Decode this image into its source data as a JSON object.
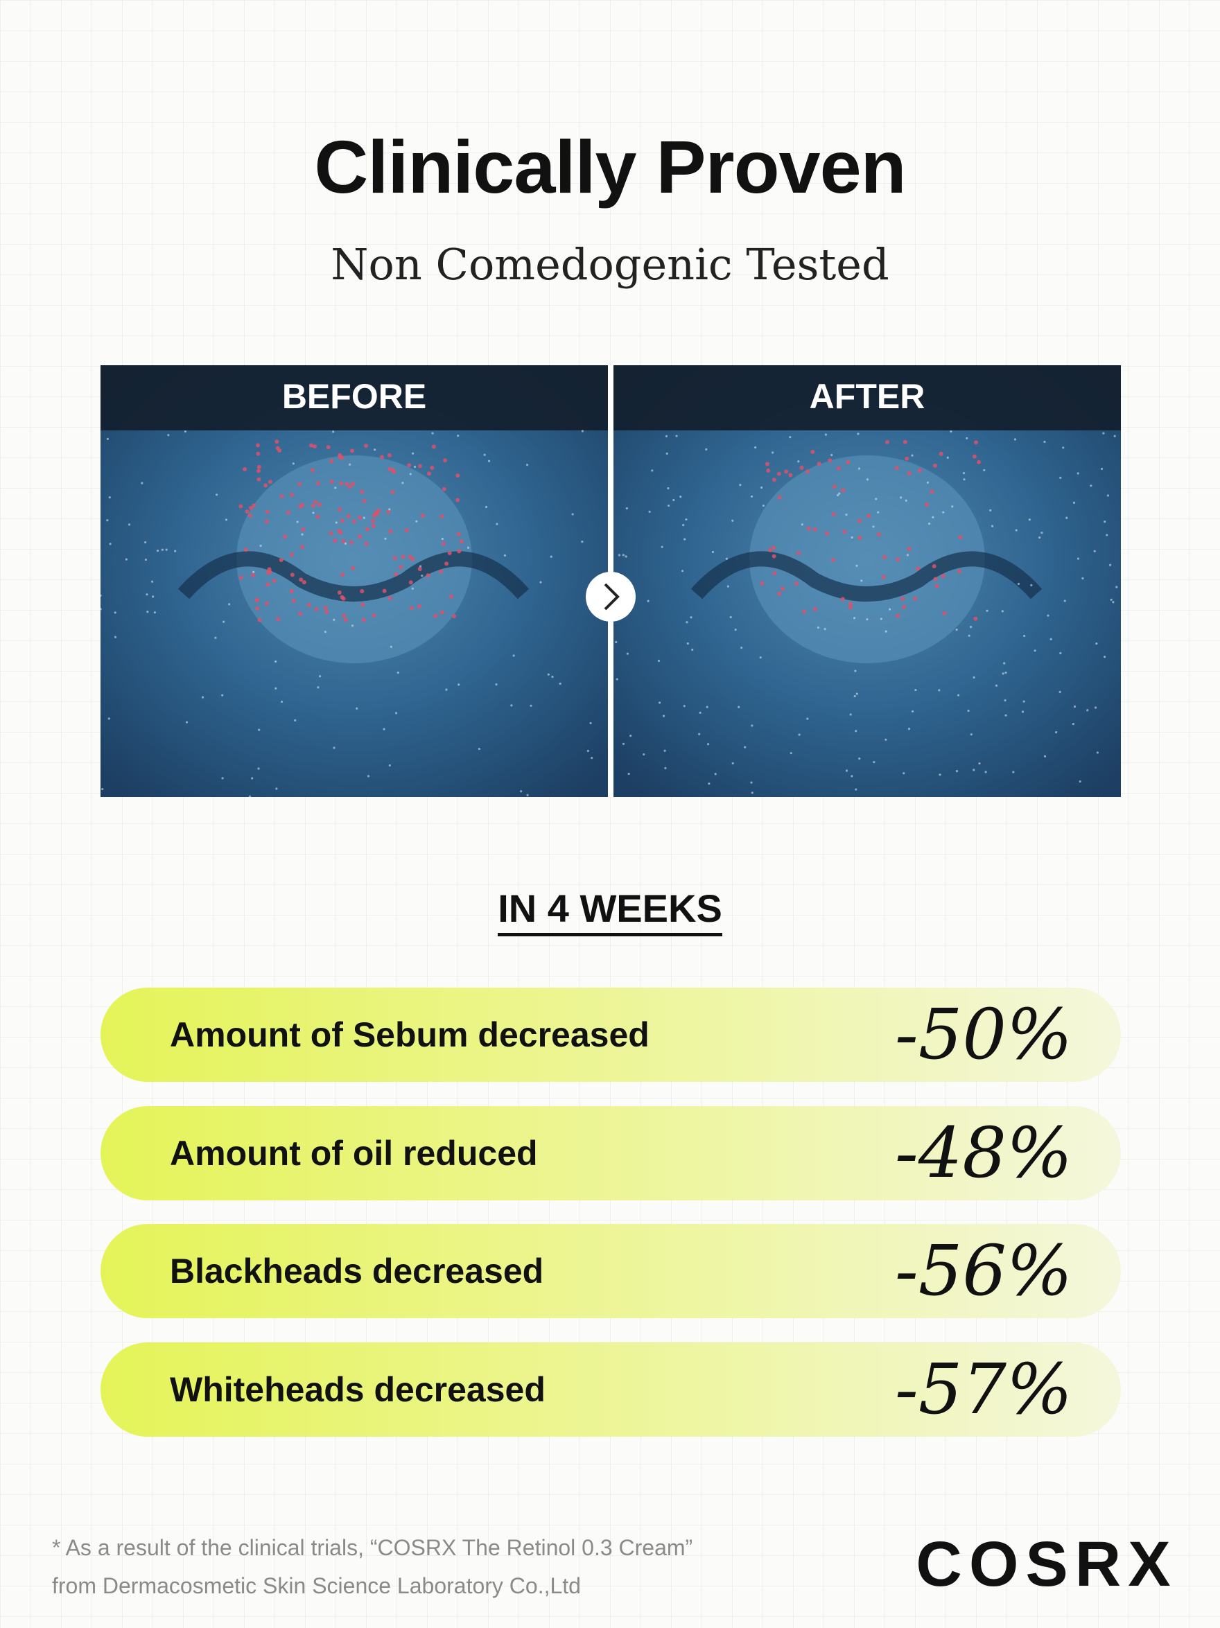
{
  "header": {
    "title": "Clinically Proven",
    "subtitle": "Non Comedogenic Tested"
  },
  "comparison": {
    "before_label": "BEFORE",
    "after_label": "AFTER"
  },
  "results": {
    "heading": "IN 4 WEEKS",
    "rows": [
      {
        "label": "Amount of Sebum decreased",
        "value": "-50%"
      },
      {
        "label": "Amount of oil reduced",
        "value": "-48%"
      },
      {
        "label": "Blackheads decreased",
        "value": "-56%"
      },
      {
        "label": "Whiteheads decreased",
        "value": "-57%"
      }
    ]
  },
  "footnote": {
    "lines": [
      "* As a result of the clinical trials, “COSRX The Retinol 0.3 Cream”",
      "from Dermacosmetic Skin Science Laboratory Co.,Ltd"
    ]
  },
  "brand": "COSRX"
}
